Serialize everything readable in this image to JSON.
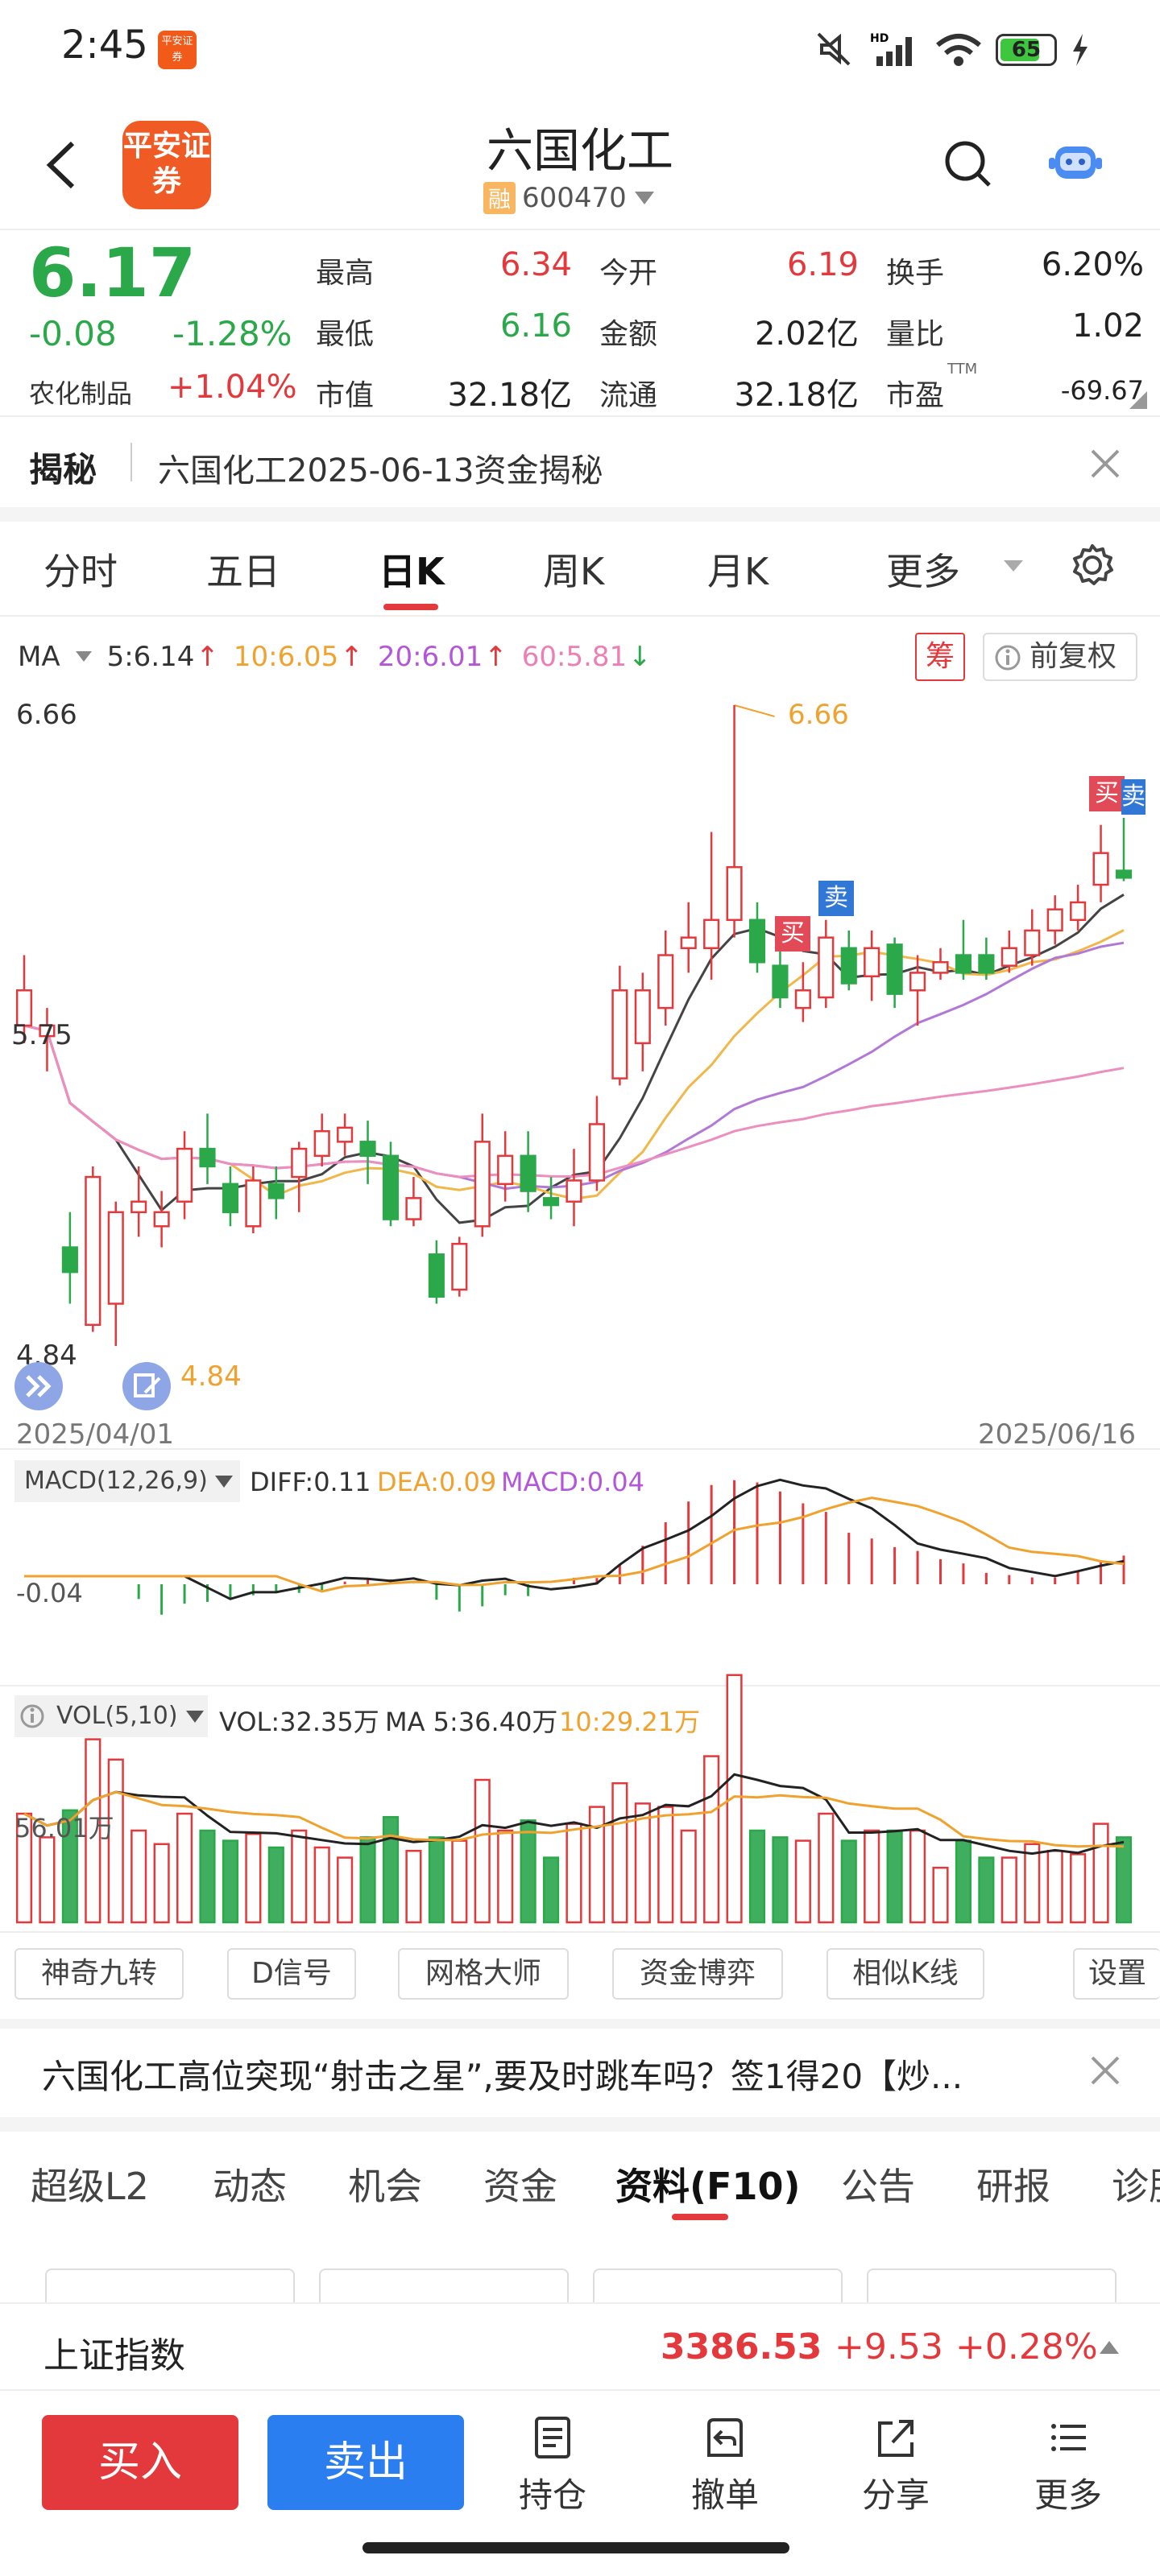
{
  "status_bar": {
    "time": "2:45",
    "app_badge": "平安证券",
    "battery": "65"
  },
  "header": {
    "logo": "平安证券",
    "stock_name": "六国化工",
    "margin_tag": "融",
    "stock_code": "600470"
  },
  "quote": {
    "price": "6.17",
    "change": "-0.08",
    "change_pct": "-1.28%",
    "sector_name": "农化制品",
    "sector_pct": "+1.04%",
    "high_label": "最高",
    "high": "6.34",
    "low_label": "最低",
    "low": "6.16",
    "mcap_label": "市值",
    "mcap": "32.18亿",
    "open_label": "今开",
    "open": "6.19",
    "amount_label": "金额",
    "amount": "2.02亿",
    "float_label": "流通",
    "float": "32.18亿",
    "turnover_label": "换手",
    "turnover": "6.20%",
    "volratio_label": "量比",
    "volratio": "1.02",
    "pe_label": "市盈",
    "pe_sup": "TTM",
    "pe": "-69.67"
  },
  "reveal": {
    "tag": "揭秘",
    "text": "六国化工2025-06-13资金揭秘"
  },
  "period_tabs": [
    "分时",
    "五日",
    "日K",
    "周K",
    "月K",
    "更多"
  ],
  "ma_legend": {
    "label": "MA",
    "ma5": "5:6.14",
    "ma10": "10:6.05",
    "ma20": "20:6.01",
    "ma60": "60:5.81",
    "chip": "筹",
    "adjust": "前复权"
  },
  "kline": {
    "y_high_label": "6.66",
    "y_mid_label": "5.75",
    "y_low_label": "4.84",
    "max_marker": "6.66",
    "min_marker": "4.84",
    "date_start": "2025/04/01",
    "date_end": "2025/06/16",
    "buy_tag": "买",
    "sell_tag": "卖"
  },
  "macd": {
    "label": "MACD(12,26,9)",
    "diff": "DIFF:0.11",
    "dea": "DEA:0.09",
    "macd": "MACD:0.04",
    "axis": "-0.04"
  },
  "vol": {
    "label": "VOL(5,10)",
    "vol": "VOL:32.35万",
    "ma5": "MA 5:36.40万",
    "ma10": "10:29.21万",
    "axis": "56.01万"
  },
  "tools": [
    "神奇九转",
    "D信号",
    "网格大师",
    "资金博弈",
    "相似K线",
    "设置"
  ],
  "news": {
    "text": "六国化工高位突现“射击之星”,要及时跳车吗？签1得20【炒..."
  },
  "f_tabs": [
    "超级L2",
    "动态",
    "机会",
    "资金",
    "资料(F10)",
    "公告",
    "研报",
    "诊股"
  ],
  "index_bar": {
    "name": "上证指数",
    "value": "3386.53",
    "change": "+9.53",
    "pct": "+0.28%"
  },
  "bottom": {
    "buy": "买入",
    "sell": "卖出",
    "hold": "持仓",
    "cancel": "撤单",
    "share": "分享",
    "more": "更多"
  },
  "chart_data": {
    "type": "candlestick",
    "x_range": [
      "2025/04/01",
      "2025/06/16"
    ],
    "ylim": [
      4.84,
      6.66
    ],
    "candles": [
      {
        "o": 5.85,
        "c": 5.75,
        "h": 5.95,
        "l": 5.7,
        "up": true
      },
      {
        "o": 5.75,
        "c": 5.72,
        "h": 5.8,
        "l": 5.62,
        "up": true
      },
      {
        "o": 5.05,
        "c": 5.12,
        "h": 5.22,
        "l": 4.96,
        "up": false
      },
      {
        "o": 4.9,
        "c": 5.32,
        "h": 5.35,
        "l": 4.88,
        "up": true
      },
      {
        "o": 4.96,
        "c": 5.22,
        "h": 5.25,
        "l": 4.84,
        "up": true
      },
      {
        "o": 5.22,
        "c": 5.25,
        "h": 5.35,
        "l": 5.15,
        "up": true
      },
      {
        "o": 5.18,
        "c": 5.22,
        "h": 5.28,
        "l": 5.12,
        "up": true
      },
      {
        "o": 5.25,
        "c": 5.4,
        "h": 5.45,
        "l": 5.2,
        "up": true
      },
      {
        "o": 5.4,
        "c": 5.35,
        "h": 5.5,
        "l": 5.3,
        "up": false
      },
      {
        "o": 5.3,
        "c": 5.22,
        "h": 5.35,
        "l": 5.18,
        "up": false
      },
      {
        "o": 5.18,
        "c": 5.31,
        "h": 5.35,
        "l": 5.16,
        "up": true
      },
      {
        "o": 5.3,
        "c": 5.26,
        "h": 5.35,
        "l": 5.2,
        "up": false
      },
      {
        "o": 5.32,
        "c": 5.4,
        "h": 5.42,
        "l": 5.22,
        "up": true
      },
      {
        "o": 5.38,
        "c": 5.45,
        "h": 5.5,
        "l": 5.35,
        "up": true
      },
      {
        "o": 5.42,
        "c": 5.46,
        "h": 5.5,
        "l": 5.38,
        "up": true
      },
      {
        "o": 5.42,
        "c": 5.38,
        "h": 5.48,
        "l": 5.3,
        "up": false
      },
      {
        "o": 5.38,
        "c": 5.2,
        "h": 5.42,
        "l": 5.18,
        "up": false
      },
      {
        "o": 5.2,
        "c": 5.26,
        "h": 5.32,
        "l": 5.18,
        "up": true
      },
      {
        "o": 5.1,
        "c": 4.98,
        "h": 5.14,
        "l": 4.96,
        "up": false
      },
      {
        "o": 5.0,
        "c": 5.13,
        "h": 5.15,
        "l": 4.98,
        "up": true
      },
      {
        "o": 5.18,
        "c": 5.42,
        "h": 5.5,
        "l": 5.15,
        "up": true
      },
      {
        "o": 5.3,
        "c": 5.38,
        "h": 5.45,
        "l": 5.25,
        "up": true
      },
      {
        "o": 5.38,
        "c": 5.28,
        "h": 5.45,
        "l": 5.22,
        "up": false
      },
      {
        "o": 5.26,
        "c": 5.24,
        "h": 5.32,
        "l": 5.2,
        "up": false
      },
      {
        "o": 5.25,
        "c": 5.31,
        "h": 5.4,
        "l": 5.18,
        "up": true
      },
      {
        "o": 5.31,
        "c": 5.47,
        "h": 5.55,
        "l": 5.28,
        "up": true
      },
      {
        "o": 5.6,
        "c": 5.85,
        "h": 5.92,
        "l": 5.58,
        "up": true
      },
      {
        "o": 5.7,
        "c": 5.85,
        "h": 5.9,
        "l": 5.62,
        "up": true
      },
      {
        "o": 5.8,
        "c": 5.95,
        "h": 6.02,
        "l": 5.75,
        "up": true
      },
      {
        "o": 5.97,
        "c": 6.0,
        "h": 6.1,
        "l": 5.9,
        "up": true
      },
      {
        "o": 5.97,
        "c": 6.05,
        "h": 6.3,
        "l": 5.88,
        "up": true
      },
      {
        "o": 6.05,
        "c": 6.2,
        "h": 6.66,
        "l": 6.0,
        "up": true
      },
      {
        "o": 6.05,
        "c": 5.93,
        "h": 6.1,
        "l": 5.9,
        "up": false
      },
      {
        "o": 5.92,
        "c": 5.83,
        "h": 5.98,
        "l": 5.8,
        "up": false
      },
      {
        "o": 5.85,
        "c": 5.8,
        "h": 5.93,
        "l": 5.76,
        "up": true
      },
      {
        "o": 5.83,
        "c": 6.0,
        "h": 6.05,
        "l": 5.8,
        "up": true
      },
      {
        "o": 5.97,
        "c": 5.87,
        "h": 6.02,
        "l": 5.85,
        "up": false
      },
      {
        "o": 5.89,
        "c": 5.97,
        "h": 6.02,
        "l": 5.82,
        "up": true
      },
      {
        "o": 5.98,
        "c": 5.84,
        "h": 6.0,
        "l": 5.8,
        "up": false
      },
      {
        "o": 5.85,
        "c": 5.9,
        "h": 5.95,
        "l": 5.75,
        "up": true
      },
      {
        "o": 5.9,
        "c": 5.93,
        "h": 5.97,
        "l": 5.88,
        "up": true
      },
      {
        "o": 5.95,
        "c": 5.9,
        "h": 6.05,
        "l": 5.88,
        "up": false
      },
      {
        "o": 5.95,
        "c": 5.9,
        "h": 6.0,
        "l": 5.88,
        "up": false
      },
      {
        "o": 5.92,
        "c": 5.97,
        "h": 6.02,
        "l": 5.9,
        "up": true
      },
      {
        "o": 5.95,
        "c": 6.02,
        "h": 6.08,
        "l": 5.92,
        "up": true
      },
      {
        "o": 6.02,
        "c": 6.08,
        "h": 6.12,
        "l": 5.98,
        "up": true
      },
      {
        "o": 6.05,
        "c": 6.1,
        "h": 6.15,
        "l": 6.02,
        "up": true
      },
      {
        "o": 6.15,
        "c": 6.24,
        "h": 6.32,
        "l": 6.1,
        "up": true
      },
      {
        "o": 6.19,
        "c": 6.17,
        "h": 6.34,
        "l": 6.16,
        "up": false
      }
    ]
  }
}
